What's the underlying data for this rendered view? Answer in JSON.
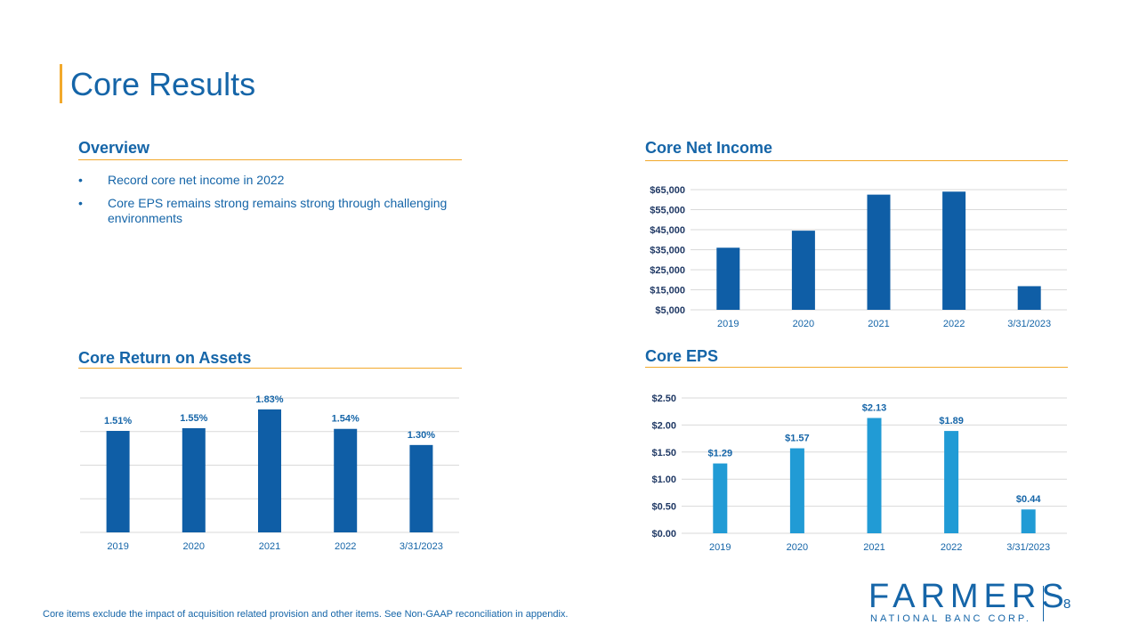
{
  "page": {
    "title": "Core Results",
    "page_number": "8",
    "footnote": "Core items exclude the impact of acquisition related provision and other items. See Non-GAAP reconciliation in appendix."
  },
  "overview": {
    "heading": "Overview",
    "bullet_symbol": "•",
    "bullets": [
      "Record core net income in 2022",
      "Core EPS remains strong remains strong through challenging environments"
    ]
  },
  "logo": {
    "name": "FARMERS",
    "subtitle": "NATIONAL BANC CORP."
  },
  "colors": {
    "brand_blue": "#1565a8",
    "bar_dark": "#0f5ea6",
    "bar_light": "#219bd5",
    "accent": "#f2a92c",
    "grid": "#d9d9d9"
  },
  "chart_data": [
    {
      "id": "net_income",
      "type": "bar",
      "title": "Core Net Income",
      "categories": [
        "2019",
        "2020",
        "2021",
        "2022",
        "3/31/2023"
      ],
      "values": [
        36000,
        44500,
        62500,
        64000,
        16800
      ],
      "ylim": [
        5000,
        65000
      ],
      "yticks": [
        5000,
        15000,
        25000,
        35000,
        45000,
        55000,
        65000
      ],
      "ytick_labels": [
        "$5,000",
        "$15,000",
        "$25,000",
        "$35,000",
        "$45,000",
        "$55,000",
        "$65,000"
      ],
      "data_labels": [],
      "grid": true
    },
    {
      "id": "roa",
      "type": "bar",
      "title": "Core Return on Assets",
      "categories": [
        "2019",
        "2020",
        "2021",
        "2022",
        "3/31/2023"
      ],
      "values": [
        1.51,
        1.55,
        1.83,
        1.54,
        1.3
      ],
      "ylim": [
        0.0,
        2.0
      ],
      "yticks": [
        0.0,
        0.5,
        1.0,
        1.5,
        2.0
      ],
      "ytick_labels": [],
      "data_labels": [
        "1.51%",
        "1.55%",
        "1.83%",
        "1.54%",
        "1.30%"
      ],
      "grid": true
    },
    {
      "id": "eps",
      "type": "bar",
      "title": "Core EPS",
      "categories": [
        "2019",
        "2020",
        "2021",
        "2022",
        "3/31/2023"
      ],
      "values": [
        1.29,
        1.57,
        2.13,
        1.89,
        0.44
      ],
      "ylim": [
        0.0,
        2.5
      ],
      "yticks": [
        0.0,
        0.5,
        1.0,
        1.5,
        2.0,
        2.5
      ],
      "ytick_labels": [
        "$0.00",
        "$0.50",
        "$1.00",
        "$1.50",
        "$2.00",
        "$2.50"
      ],
      "data_labels": [
        "$1.29",
        "$1.57",
        "$2.13",
        "$1.89",
        "$0.44"
      ],
      "grid": true
    }
  ]
}
